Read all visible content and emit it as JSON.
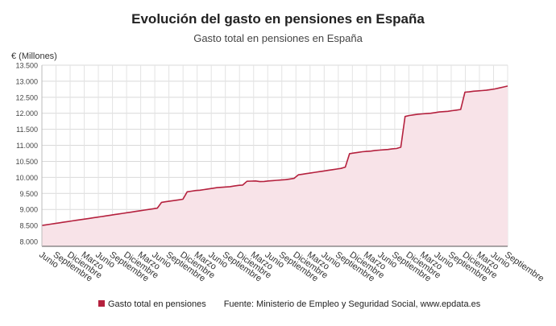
{
  "chart_data": {
    "type": "area",
    "title": "Evolución del gasto en pensiones en España",
    "subtitle": "Gasto total en pensiones en España",
    "ylabel": "€ (Millones)",
    "ylim": [
      7850,
      13500
    ],
    "yticks": [
      8000,
      8500,
      9000,
      9500,
      10000,
      10500,
      11000,
      11500,
      12000,
      12500,
      13000,
      13500
    ],
    "ytick_labels": [
      "8.000",
      "8.500",
      "9.000",
      "9.500",
      "10.000",
      "10.500",
      "11.000",
      "11.500",
      "12.000",
      "12.500",
      "13.000",
      "13.500"
    ],
    "xtick_labels": [
      "Junio",
      "Septiembre",
      "Diciembre",
      "Marzo",
      "Junio",
      "Septiembre",
      "Diciembre",
      "Marzo",
      "Junio",
      "Septiembre",
      "Diciembre",
      "Marzo",
      "Junio",
      "Septiembre",
      "Diciembre",
      "Marzo",
      "Junio",
      "Septiembre",
      "Diciembre",
      "Marzo",
      "Junio",
      "Septiembre",
      "Diciembre",
      "Marzo",
      "Junio",
      "Septiembre",
      "Diciembre",
      "Marzo",
      "Junio",
      "Septiembre",
      "Diciembre",
      "Marzo",
      "Junio",
      "Septiembre"
    ],
    "grid": true,
    "legend_position": "bottom-left",
    "series": [
      {
        "name": "Gasto total en pensiones",
        "color": "#b5213e",
        "fill": "#f8e3e8",
        "values": [
          8500,
          8520,
          8540,
          8560,
          8580,
          8600,
          8620,
          8640,
          8660,
          8680,
          8700,
          8720,
          8740,
          8760,
          8780,
          8800,
          8820,
          8840,
          8860,
          8880,
          8900,
          8920,
          8940,
          8960,
          8980,
          9000,
          9020,
          9040,
          9220,
          9240,
          9260,
          9280,
          9300,
          9320,
          9550,
          9570,
          9590,
          9600,
          9620,
          9640,
          9660,
          9680,
          9690,
          9700,
          9710,
          9730,
          9750,
          9760,
          9880,
          9885,
          9890,
          9870,
          9875,
          9890,
          9900,
          9910,
          9920,
          9930,
          9950,
          9970,
          10080,
          10100,
          10120,
          10140,
          10160,
          10180,
          10200,
          10220,
          10240,
          10260,
          10280,
          10320,
          10740,
          10760,
          10780,
          10800,
          10810,
          10820,
          10840,
          10850,
          10860,
          10870,
          10890,
          10900,
          10940,
          11900,
          11930,
          11950,
          11970,
          11980,
          11990,
          12000,
          12020,
          12040,
          12050,
          12060,
          12080,
          12100,
          12120,
          12660,
          12670,
          12690,
          12700,
          12710,
          12720,
          12740,
          12760,
          12790,
          12820,
          12850
        ]
      }
    ]
  },
  "legend": {
    "label": "Gasto total en pensiones",
    "source": "Fuente: Ministerio de Empleo y Seguridad Social, www.epdata.es"
  }
}
